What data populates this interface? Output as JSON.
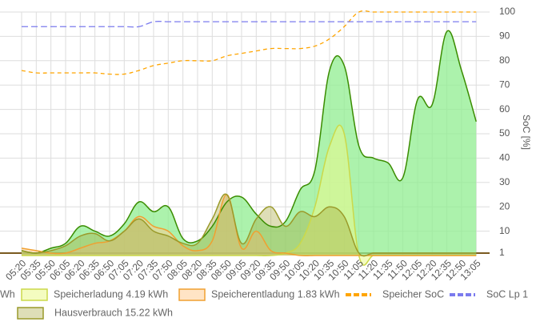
{
  "chart_data": {
    "type": "area",
    "categories": [
      "05:20",
      "05:35",
      "05:50",
      "06:05",
      "06:20",
      "06:35",
      "06:50",
      "07:05",
      "07:20",
      "07:35",
      "07:50",
      "08:05",
      "08:20",
      "08:35",
      "08:50",
      "09:05",
      "09:20",
      "09:35",
      "09:50",
      "10:05",
      "10:20",
      "10:35",
      "10:50",
      "11:05",
      "11:20",
      "11:35",
      "11:50",
      "12:05",
      "12:20",
      "12:35",
      "12:50",
      "13:05"
    ],
    "series": [
      {
        "name": "Wh",
        "color": "#3a8c00",
        "fill": "rgba(144,238,144,0.75)",
        "dash": false,
        "values": [
          2,
          1,
          3,
          5,
          12,
          10,
          8,
          13,
          22,
          18,
          20,
          7,
          6,
          12,
          22,
          24,
          17,
          12,
          14,
          27,
          35,
          76,
          78,
          45,
          40,
          38,
          32,
          64,
          62,
          92,
          76,
          55
        ]
      },
      {
        "name": "Speicherladung 4.19 kWh",
        "color": "#cbd94a",
        "fill": "rgba(235,250,140,0.55)",
        "dash": false,
        "values": [
          0,
          0,
          0,
          0,
          0,
          0,
          0,
          0,
          0,
          0,
          0,
          0,
          0,
          0,
          0,
          0,
          0,
          0,
          1,
          5,
          20,
          45,
          50,
          0,
          0,
          0,
          0,
          0,
          0,
          0,
          0,
          0
        ]
      },
      {
        "name": "Speicherentladung 1.83 kWh",
        "color": "#f0a030",
        "fill": "rgba(255,205,150,0.55)",
        "dash": false,
        "values": [
          3,
          2,
          1,
          1,
          3,
          5,
          6,
          10,
          16,
          12,
          10,
          4,
          2,
          6,
          25,
          3,
          10,
          2,
          1,
          0,
          0,
          0,
          0,
          0,
          0,
          0,
          0,
          0,
          0,
          0,
          0,
          0
        ]
      },
      {
        "name": "Speicher SoC",
        "color": "#ffa500",
        "fill": null,
        "dash": true,
        "values": [
          76,
          75,
          75,
          75,
          75,
          75,
          74.5,
          74.5,
          76,
          78,
          79,
          80,
          80,
          80,
          82,
          83,
          84,
          85,
          85,
          85,
          86,
          89,
          94,
          100,
          100,
          100,
          100,
          100,
          100,
          100,
          100,
          100
        ]
      },
      {
        "name": "SoC Lp 1",
        "color": "#7b7bee",
        "fill": null,
        "dash": true,
        "values": [
          94,
          94,
          94,
          94,
          94,
          94,
          94,
          94,
          94,
          96,
          96,
          96,
          96,
          96,
          96,
          96,
          96,
          96,
          96,
          96,
          96,
          96,
          96,
          96,
          96,
          96,
          96,
          96,
          96,
          96,
          96,
          96
        ]
      },
      {
        "name": "Hausverbrauch 15.22 kWh",
        "color": "#9a9a2a",
        "fill": "rgba(160,160,50,0.35)",
        "dash": false,
        "values": [
          2,
          1,
          2,
          4,
          8,
          9,
          6,
          10,
          15,
          10,
          8,
          5,
          5,
          15,
          25,
          5,
          15,
          20,
          12,
          18,
          16,
          20,
          16,
          1,
          1,
          1,
          1,
          1,
          1,
          1,
          1,
          1
        ]
      }
    ],
    "ylim": [
      0,
      100
    ],
    "yticks": [
      1,
      10,
      20,
      30,
      40,
      50,
      60,
      70,
      80,
      90,
      100
    ],
    "y_axis_label": "SoC [%]",
    "grid": true
  }
}
